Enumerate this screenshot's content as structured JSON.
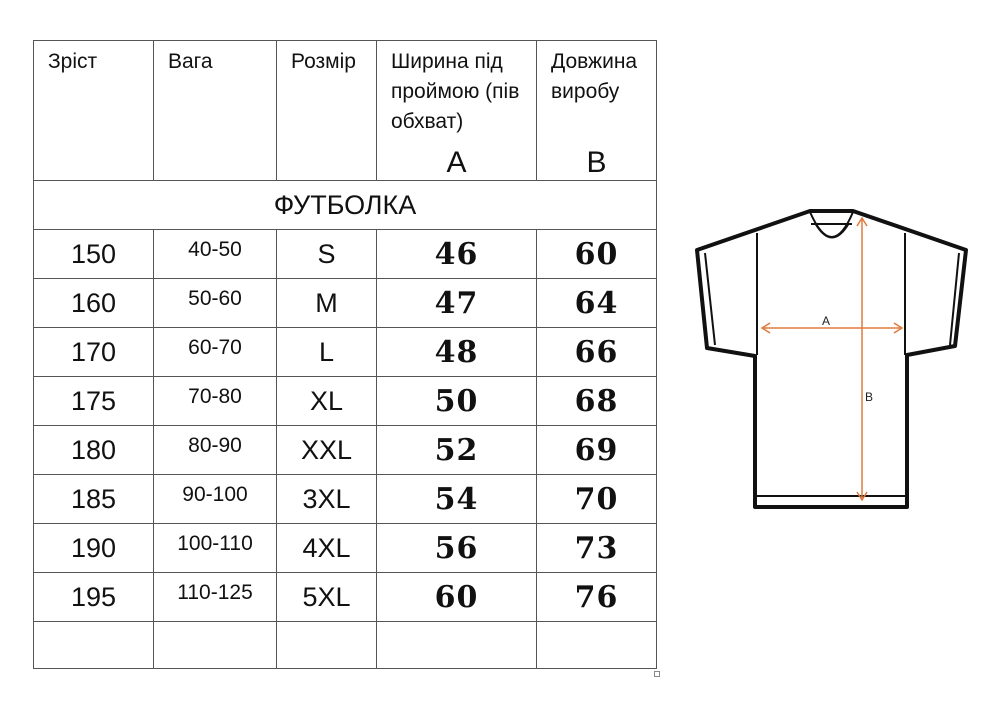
{
  "table": {
    "headers": [
      {
        "label": "Зріст"
      },
      {
        "label": "Вага"
      },
      {
        "label": "Розмір"
      },
      {
        "label": "Ширина під проймою (пів обхват)",
        "letter": "A"
      },
      {
        "label": "Довжина виробу",
        "letter": "B"
      }
    ],
    "section_title": "ФУТБОЛКА",
    "rows": [
      {
        "height": "150",
        "weight": "40-50",
        "size": "S",
        "a": "46",
        "b": "60"
      },
      {
        "height": "160",
        "weight": "50-60",
        "size": "M",
        "a": "47",
        "b": "64"
      },
      {
        "height": "170",
        "weight": "60-70",
        "size": "L",
        "a": "48",
        "b": "66"
      },
      {
        "height": "175",
        "weight": "70-80",
        "size": "XL",
        "a": "50",
        "b": "68"
      },
      {
        "height": "180",
        "weight": "80-90",
        "size": "XXL",
        "a": "52",
        "b": "69"
      },
      {
        "height": "185",
        "weight": "90-100",
        "size": "3XL",
        "a": "54",
        "b": "70"
      },
      {
        "height": "190",
        "weight": "100-110",
        "size": "4XL",
        "a": "56",
        "b": "73"
      },
      {
        "height": "195",
        "weight": "110-125",
        "size": "5XL",
        "a": "60",
        "b": "76"
      }
    ]
  },
  "diagram": {
    "label_a": "A",
    "label_b": "B",
    "arrow_color": "#e07a3c",
    "outline_color": "#111111"
  }
}
